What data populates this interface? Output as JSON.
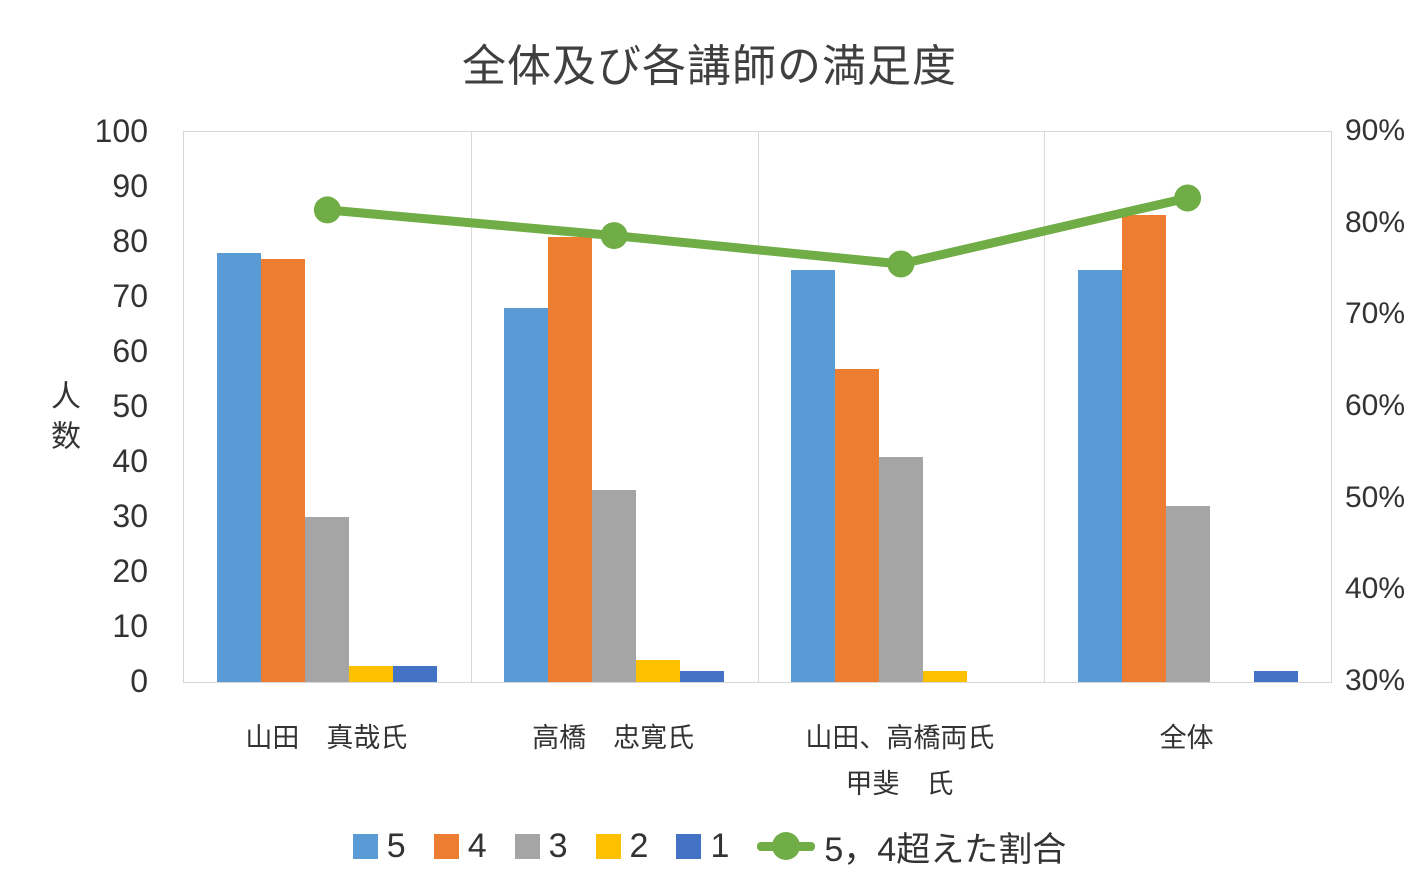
{
  "chart_data": {
    "type": "bar",
    "subtype": "grouped-bars-with-line-combo",
    "title": "全体及び各講師の満足度",
    "categories": [
      "山田　真哉氏",
      "高橋　忠寛氏",
      "山田、高橋両氏",
      "全体"
    ],
    "secondary_category_label": "甲斐　氏",
    "secondary_category_under_index": 2,
    "bar_series": [
      {
        "name": "5",
        "color": "#5B9BD5",
        "values": [
          78,
          68,
          75,
          75
        ]
      },
      {
        "name": "4",
        "color": "#ED7D31",
        "values": [
          77,
          81,
          57,
          85
        ]
      },
      {
        "name": "3",
        "color": "#A5A5A5",
        "values": [
          30,
          35,
          41,
          32
        ]
      },
      {
        "name": "2",
        "color": "#FFC000",
        "values": [
          3,
          4,
          2,
          0
        ]
      },
      {
        "name": "1",
        "color": "#4472C4",
        "values": [
          3,
          2,
          0,
          2
        ]
      }
    ],
    "line_series": {
      "name": "5，4超えた割合",
      "color": "#70AD47",
      "axis": "right",
      "values_percent": [
        81.5,
        78.7,
        75.6,
        82.8
      ]
    },
    "left_axis": {
      "title": "人数",
      "min": 0,
      "max": 100,
      "step": 10,
      "tick_labels": [
        "100",
        "90",
        "80",
        "70",
        "60",
        "50",
        "40",
        "30",
        "20",
        "10",
        "0"
      ]
    },
    "right_axis": {
      "min": 30,
      "max": 90,
      "step": 10,
      "unit": "%",
      "tick_labels": [
        "90%",
        "80%",
        "70%",
        "60%",
        "50%",
        "40%",
        "30%"
      ]
    },
    "legend": {
      "position": "bottom",
      "entries": [
        "5",
        "4",
        "3",
        "2",
        "1",
        "5，4超えた割合"
      ]
    },
    "gridlines": "vertical category separators only"
  }
}
